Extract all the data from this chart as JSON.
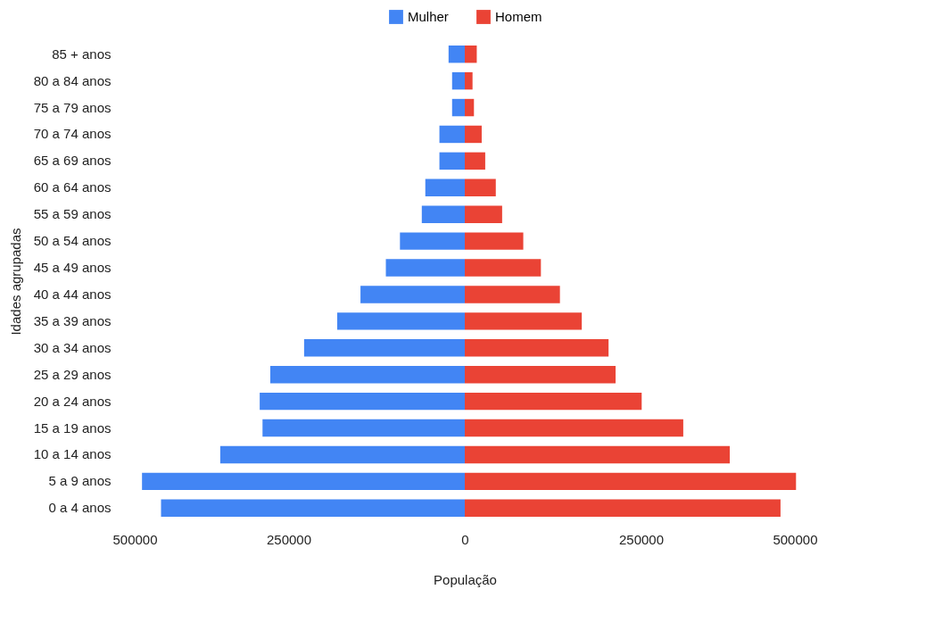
{
  "chart_data": {
    "type": "bar",
    "orientation": "horizontal",
    "xlabel": "População",
    "ylabel": "Idades agrupadas",
    "categories": [
      "85 + anos",
      "80 a 84 anos",
      "75 a 79 anos",
      "70 a 74 anos",
      "65 a 69 anos",
      "60 a 64 anos",
      "55 a 59 anos",
      "50 a 54 anos",
      "45 a 49 anos",
      "40 a 44 anos",
      "35 a 39 anos",
      "30 a 34 anos",
      "25 a 29 anos",
      "20 a 24 anos",
      "15 a 19 anos",
      "10 a 14 anos",
      "5 a 9 anos",
      "0 a 4 anos"
    ],
    "series": [
      {
        "name": "Mulher",
        "color": "#4285f4",
        "values": [
          -23000,
          -18000,
          -18000,
          -36000,
          -36000,
          -56000,
          -61000,
          -92000,
          -112000,
          -148000,
          -181000,
          -228000,
          -276000,
          -291000,
          -287000,
          -347000,
          -458000,
          -431000
        ]
      },
      {
        "name": "Homem",
        "color": "#ea4335",
        "values": [
          17000,
          11000,
          13000,
          24000,
          29000,
          44000,
          53000,
          83000,
          108000,
          135000,
          166000,
          204000,
          214000,
          251000,
          310000,
          376000,
          470000,
          448000
        ]
      }
    ],
    "xlim": [
      -500000,
      500000
    ],
    "xticks": [
      {
        "value": -500000,
        "label": "500000"
      },
      {
        "value": -250000,
        "label": "250000"
      },
      0,
      250000,
      500000
    ],
    "grid": false,
    "legend": "top",
    "stacked": true
  }
}
